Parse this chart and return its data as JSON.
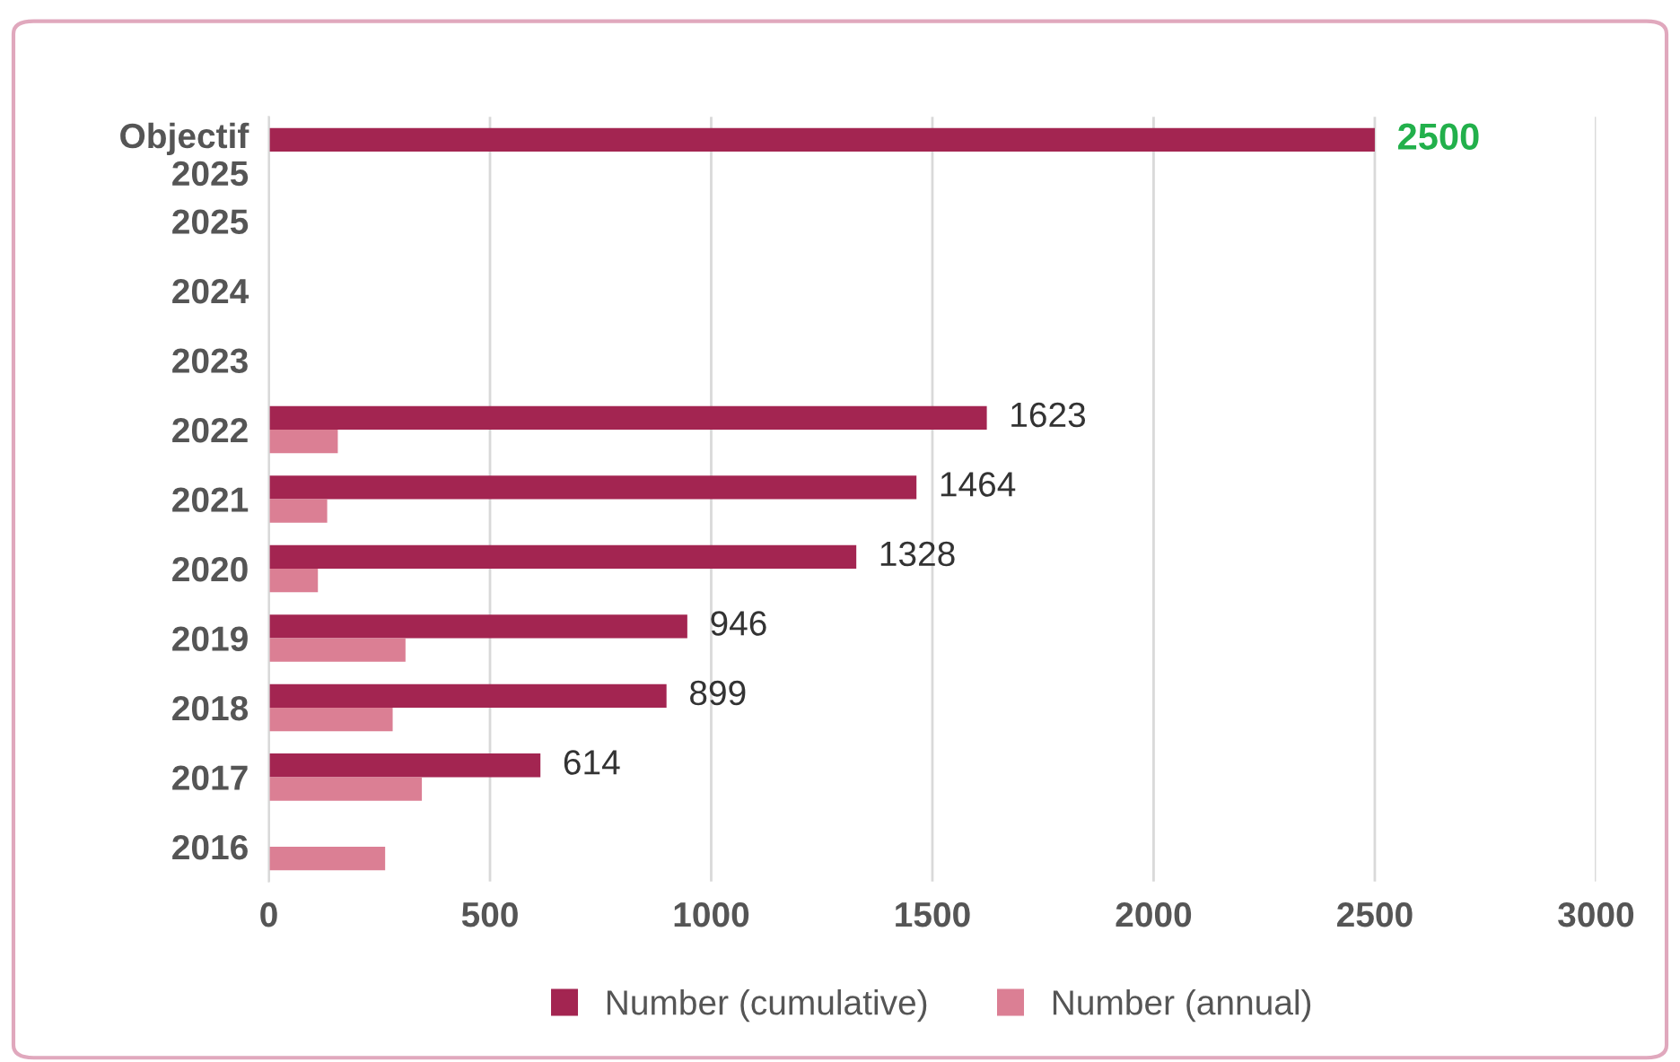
{
  "chart_data": {
    "type": "bar",
    "orientation": "horizontal",
    "categories": [
      "Objectif\n2025",
      "2025",
      "2024",
      "2023",
      "2022",
      "2021",
      "2020",
      "2019",
      "2018",
      "2017",
      "2016"
    ],
    "series": [
      {
        "name": "Number (cumulative)",
        "color": "#a32551",
        "values": [
          2500,
          null,
          null,
          null,
          1623,
          1464,
          1328,
          946,
          899,
          614,
          null
        ],
        "value_labels": [
          "2500",
          null,
          null,
          null,
          "1623",
          "1464",
          "1328",
          "946",
          "899",
          "614",
          null
        ]
      },
      {
        "name": "Number (annual)",
        "color": "#db7f94",
        "values": [
          null,
          null,
          null,
          null,
          156,
          132,
          111,
          309,
          280,
          346,
          263
        ]
      }
    ],
    "xlim": [
      0,
      3000
    ],
    "xticks": [
      0,
      500,
      1000,
      1500,
      2000,
      2500,
      3000
    ],
    "grid": "x",
    "legend": "bottom"
  }
}
